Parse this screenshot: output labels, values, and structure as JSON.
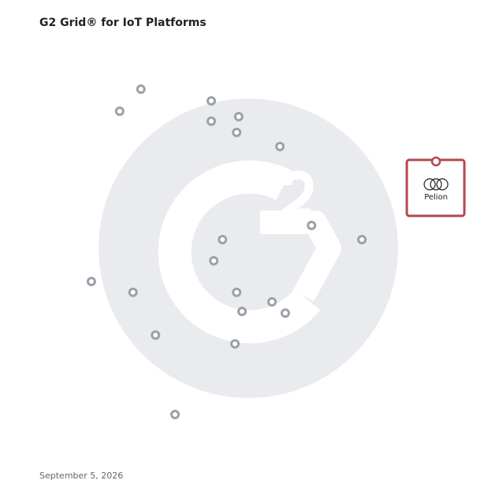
{
  "chart_data": {
    "type": "scatter",
    "title": "G2 Grid® for IoT Platforms",
    "footnote": "September 5, 2026",
    "x": [
      24.2,
      19.1,
      41.1,
      41.1,
      47.7,
      47.2,
      57.6,
      65.2,
      77.3,
      43.8,
      41.7,
      12.3,
      22.3,
      47.2,
      48.5,
      55.7,
      58.9,
      27.7,
      46.8,
      32.4,
      95.1
    ],
    "values": [
      88.2,
      82.9,
      85.4,
      80.5,
      81.6,
      77.8,
      74.4,
      55.4,
      52.0,
      52.0,
      46.9,
      41.9,
      39.3,
      39.3,
      34.7,
      37.0,
      34.3,
      29.0,
      26.9,
      9.9,
      70.8
    ],
    "point_labels": [
      null,
      null,
      null,
      null,
      null,
      null,
      null,
      null,
      null,
      null,
      null,
      null,
      null,
      null,
      null,
      null,
      null,
      null,
      null,
      null,
      "Pelion"
    ],
    "xlim": [
      0,
      100
    ],
    "ylim": [
      0,
      100
    ],
    "color": "#9ca1a9",
    "highlight_color": "#b5484c"
  }
}
